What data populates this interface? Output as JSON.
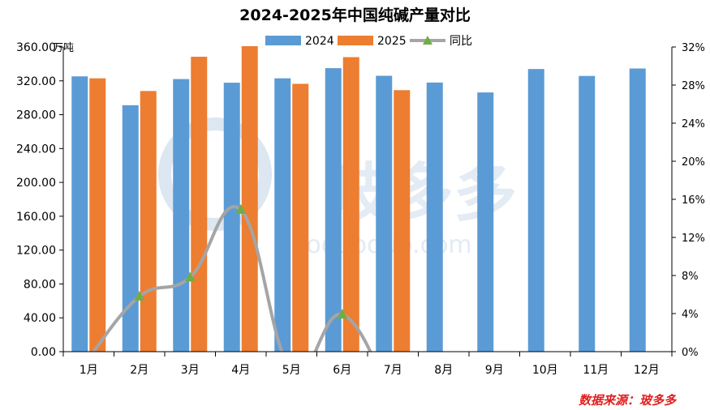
{
  "chart_data": {
    "type": "bar",
    "title": "2024-2025年中国纯碱产量对比",
    "ylabel": "万吨",
    "y2label": "",
    "categories": [
      "1月",
      "2月",
      "3月",
      "4月",
      "5月",
      "6月",
      "7月",
      "8月",
      "9月",
      "10月",
      "11月",
      "12月"
    ],
    "series": [
      {
        "name": "2024",
        "type": "bar",
        "color": "#5b9bd5",
        "values": [
          325.3,
          291.2,
          322.1,
          317.8,
          323.0,
          335.0,
          326.0,
          318.0,
          306.3,
          334.0,
          325.8,
          334.6
        ]
      },
      {
        "name": "2025",
        "type": "bar",
        "color": "#ed7d31",
        "values": [
          323.0,
          308.0,
          348.5,
          361.0,
          316.5,
          348.0,
          309.0,
          null,
          null,
          null,
          null,
          null
        ]
      },
      {
        "name": "同比",
        "type": "line",
        "axis": "right",
        "color": "#a5a5a5",
        "marker_color": "#70ad47",
        "values": [
          -0.7,
          5.8,
          7.8,
          14.9,
          -2.0,
          3.9,
          -5.2,
          null,
          null,
          null,
          null,
          null
        ]
      }
    ],
    "ylim": [
      0,
      360
    ],
    "yticks": [
      "0.00",
      "40.00",
      "80.00",
      "120.00",
      "160.00",
      "200.00",
      "240.00",
      "280.00",
      "320.00",
      "360.00"
    ],
    "y2lim": [
      0,
      32
    ],
    "y2ticks": [
      "0%",
      "4%",
      "8%",
      "12%",
      "16%",
      "20%",
      "24%",
      "28%",
      "32%"
    ],
    "legend": "top-center",
    "grid": false
  },
  "source_text": "数据来源：玻多多",
  "watermark": {
    "text": "玻多多",
    "url": "boduoduo.com"
  }
}
